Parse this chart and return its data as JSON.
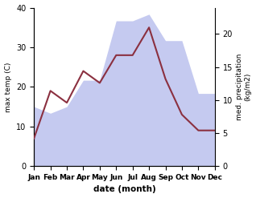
{
  "months": [
    "Jan",
    "Feb",
    "Mar",
    "Apr",
    "May",
    "Jun",
    "Jul",
    "Aug",
    "Sep",
    "Oct",
    "Nov",
    "Dec"
  ],
  "temp": [
    7,
    19,
    16,
    24,
    21,
    28,
    28,
    35,
    22,
    13,
    9,
    9
  ],
  "precip": [
    9,
    8,
    9,
    13,
    13,
    22,
    22,
    23,
    19,
    19,
    11,
    11
  ],
  "temp_color": "#8b3040",
  "precip_fill_color": "#c5caf0",
  "temp_ylim": [
    0,
    40
  ],
  "precip_ylim": [
    0,
    24
  ],
  "precip_yticks": [
    0,
    5,
    10,
    15,
    20
  ],
  "temp_yticks": [
    0,
    10,
    20,
    30,
    40
  ],
  "xlabel": "date (month)",
  "ylabel_left": "max temp (C)",
  "ylabel_right": "med. precipitation\n(kg/m2)",
  "bg_color": "#ffffff"
}
